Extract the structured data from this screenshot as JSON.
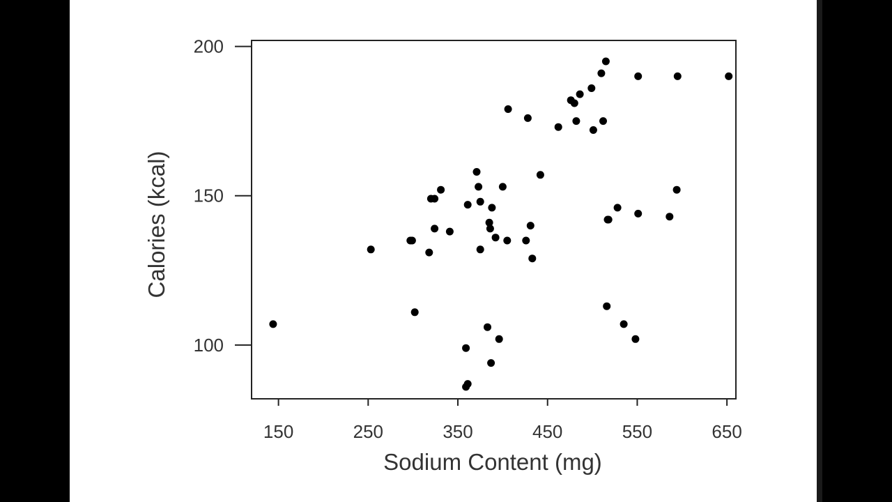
{
  "chart_data": {
    "type": "scatter",
    "title": "",
    "xlabel": "Sodium Content (mg)",
    "ylabel": "Calories (kcal)",
    "xlim": [
      120,
      660
    ],
    "ylim": [
      82,
      202
    ],
    "xticks": [
      "150",
      "250",
      "350",
      "450",
      "550",
      "650"
    ],
    "yticks": [
      "100",
      "150",
      "200"
    ],
    "grid": false,
    "legend": "none",
    "marker_color": "#000000",
    "points": [
      {
        "x": 144,
        "y": 107
      },
      {
        "x": 253,
        "y": 132
      },
      {
        "x": 297,
        "y": 135
      },
      {
        "x": 299,
        "y": 135
      },
      {
        "x": 302,
        "y": 111
      },
      {
        "x": 318,
        "y": 131
      },
      {
        "x": 320,
        "y": 149
      },
      {
        "x": 324,
        "y": 149
      },
      {
        "x": 324,
        "y": 139
      },
      {
        "x": 331,
        "y": 152
      },
      {
        "x": 341,
        "y": 138
      },
      {
        "x": 359,
        "y": 99
      },
      {
        "x": 359,
        "y": 86
      },
      {
        "x": 361,
        "y": 87
      },
      {
        "x": 361,
        "y": 147
      },
      {
        "x": 371,
        "y": 158
      },
      {
        "x": 373,
        "y": 153
      },
      {
        "x": 375,
        "y": 148
      },
      {
        "x": 375,
        "y": 132
      },
      {
        "x": 383,
        "y": 106
      },
      {
        "x": 385,
        "y": 141
      },
      {
        "x": 386,
        "y": 139
      },
      {
        "x": 387,
        "y": 94
      },
      {
        "x": 388,
        "y": 146
      },
      {
        "x": 392,
        "y": 136
      },
      {
        "x": 396,
        "y": 102
      },
      {
        "x": 400,
        "y": 153
      },
      {
        "x": 405,
        "y": 135
      },
      {
        "x": 406,
        "y": 179
      },
      {
        "x": 426,
        "y": 135
      },
      {
        "x": 428,
        "y": 176
      },
      {
        "x": 431,
        "y": 140
      },
      {
        "x": 433,
        "y": 129
      },
      {
        "x": 442,
        "y": 157
      },
      {
        "x": 462,
        "y": 173
      },
      {
        "x": 476,
        "y": 182
      },
      {
        "x": 480,
        "y": 181
      },
      {
        "x": 482,
        "y": 175
      },
      {
        "x": 486,
        "y": 184
      },
      {
        "x": 499,
        "y": 186
      },
      {
        "x": 501,
        "y": 172
      },
      {
        "x": 510,
        "y": 191
      },
      {
        "x": 512,
        "y": 175
      },
      {
        "x": 515,
        "y": 195
      },
      {
        "x": 516,
        "y": 113
      },
      {
        "x": 517,
        "y": 142
      },
      {
        "x": 518,
        "y": 142
      },
      {
        "x": 528,
        "y": 146
      },
      {
        "x": 535,
        "y": 107
      },
      {
        "x": 548,
        "y": 102
      },
      {
        "x": 551,
        "y": 190
      },
      {
        "x": 551,
        "y": 144
      },
      {
        "x": 586,
        "y": 143
      },
      {
        "x": 594,
        "y": 152
      },
      {
        "x": 595,
        "y": 190
      },
      {
        "x": 652,
        "y": 190
      }
    ]
  }
}
